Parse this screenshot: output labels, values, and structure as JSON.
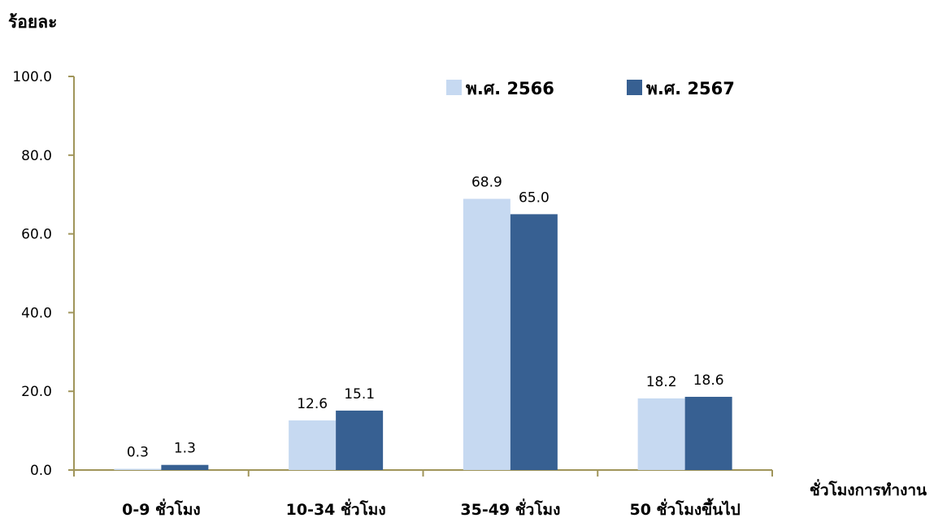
{
  "chart_data": {
    "type": "bar",
    "title": "",
    "ylabel": "ร้อยละ",
    "xlabel": "ชั่วโมงการทำงาน",
    "categories": [
      "0-9 ชั่วโมง",
      "10-34 ชั่วโมง",
      "35-49 ชั่วโมง",
      "50 ชั่วโมงขึ้นไป"
    ],
    "series": [
      {
        "name": "พ.ศ. 2566",
        "color": "#c6d9f1",
        "values": [
          0.3,
          12.6,
          68.9,
          18.2
        ],
        "labels": [
          "0.3",
          "12.6",
          "68.9",
          "18.2"
        ]
      },
      {
        "name": "พ.ศ. 2567",
        "color": "#376092",
        "values": [
          1.3,
          15.1,
          65.0,
          18.6
        ],
        "labels": [
          "1.3",
          "15.1",
          "65.0",
          "18.6"
        ]
      }
    ],
    "ylim": [
      0,
      100
    ],
    "yticks": [
      "0.0",
      "20.0",
      "40.0",
      "60.0",
      "80.0",
      "100.0"
    ],
    "grid": false,
    "legend_position": "top-right",
    "axis_color": "#a0955a"
  }
}
